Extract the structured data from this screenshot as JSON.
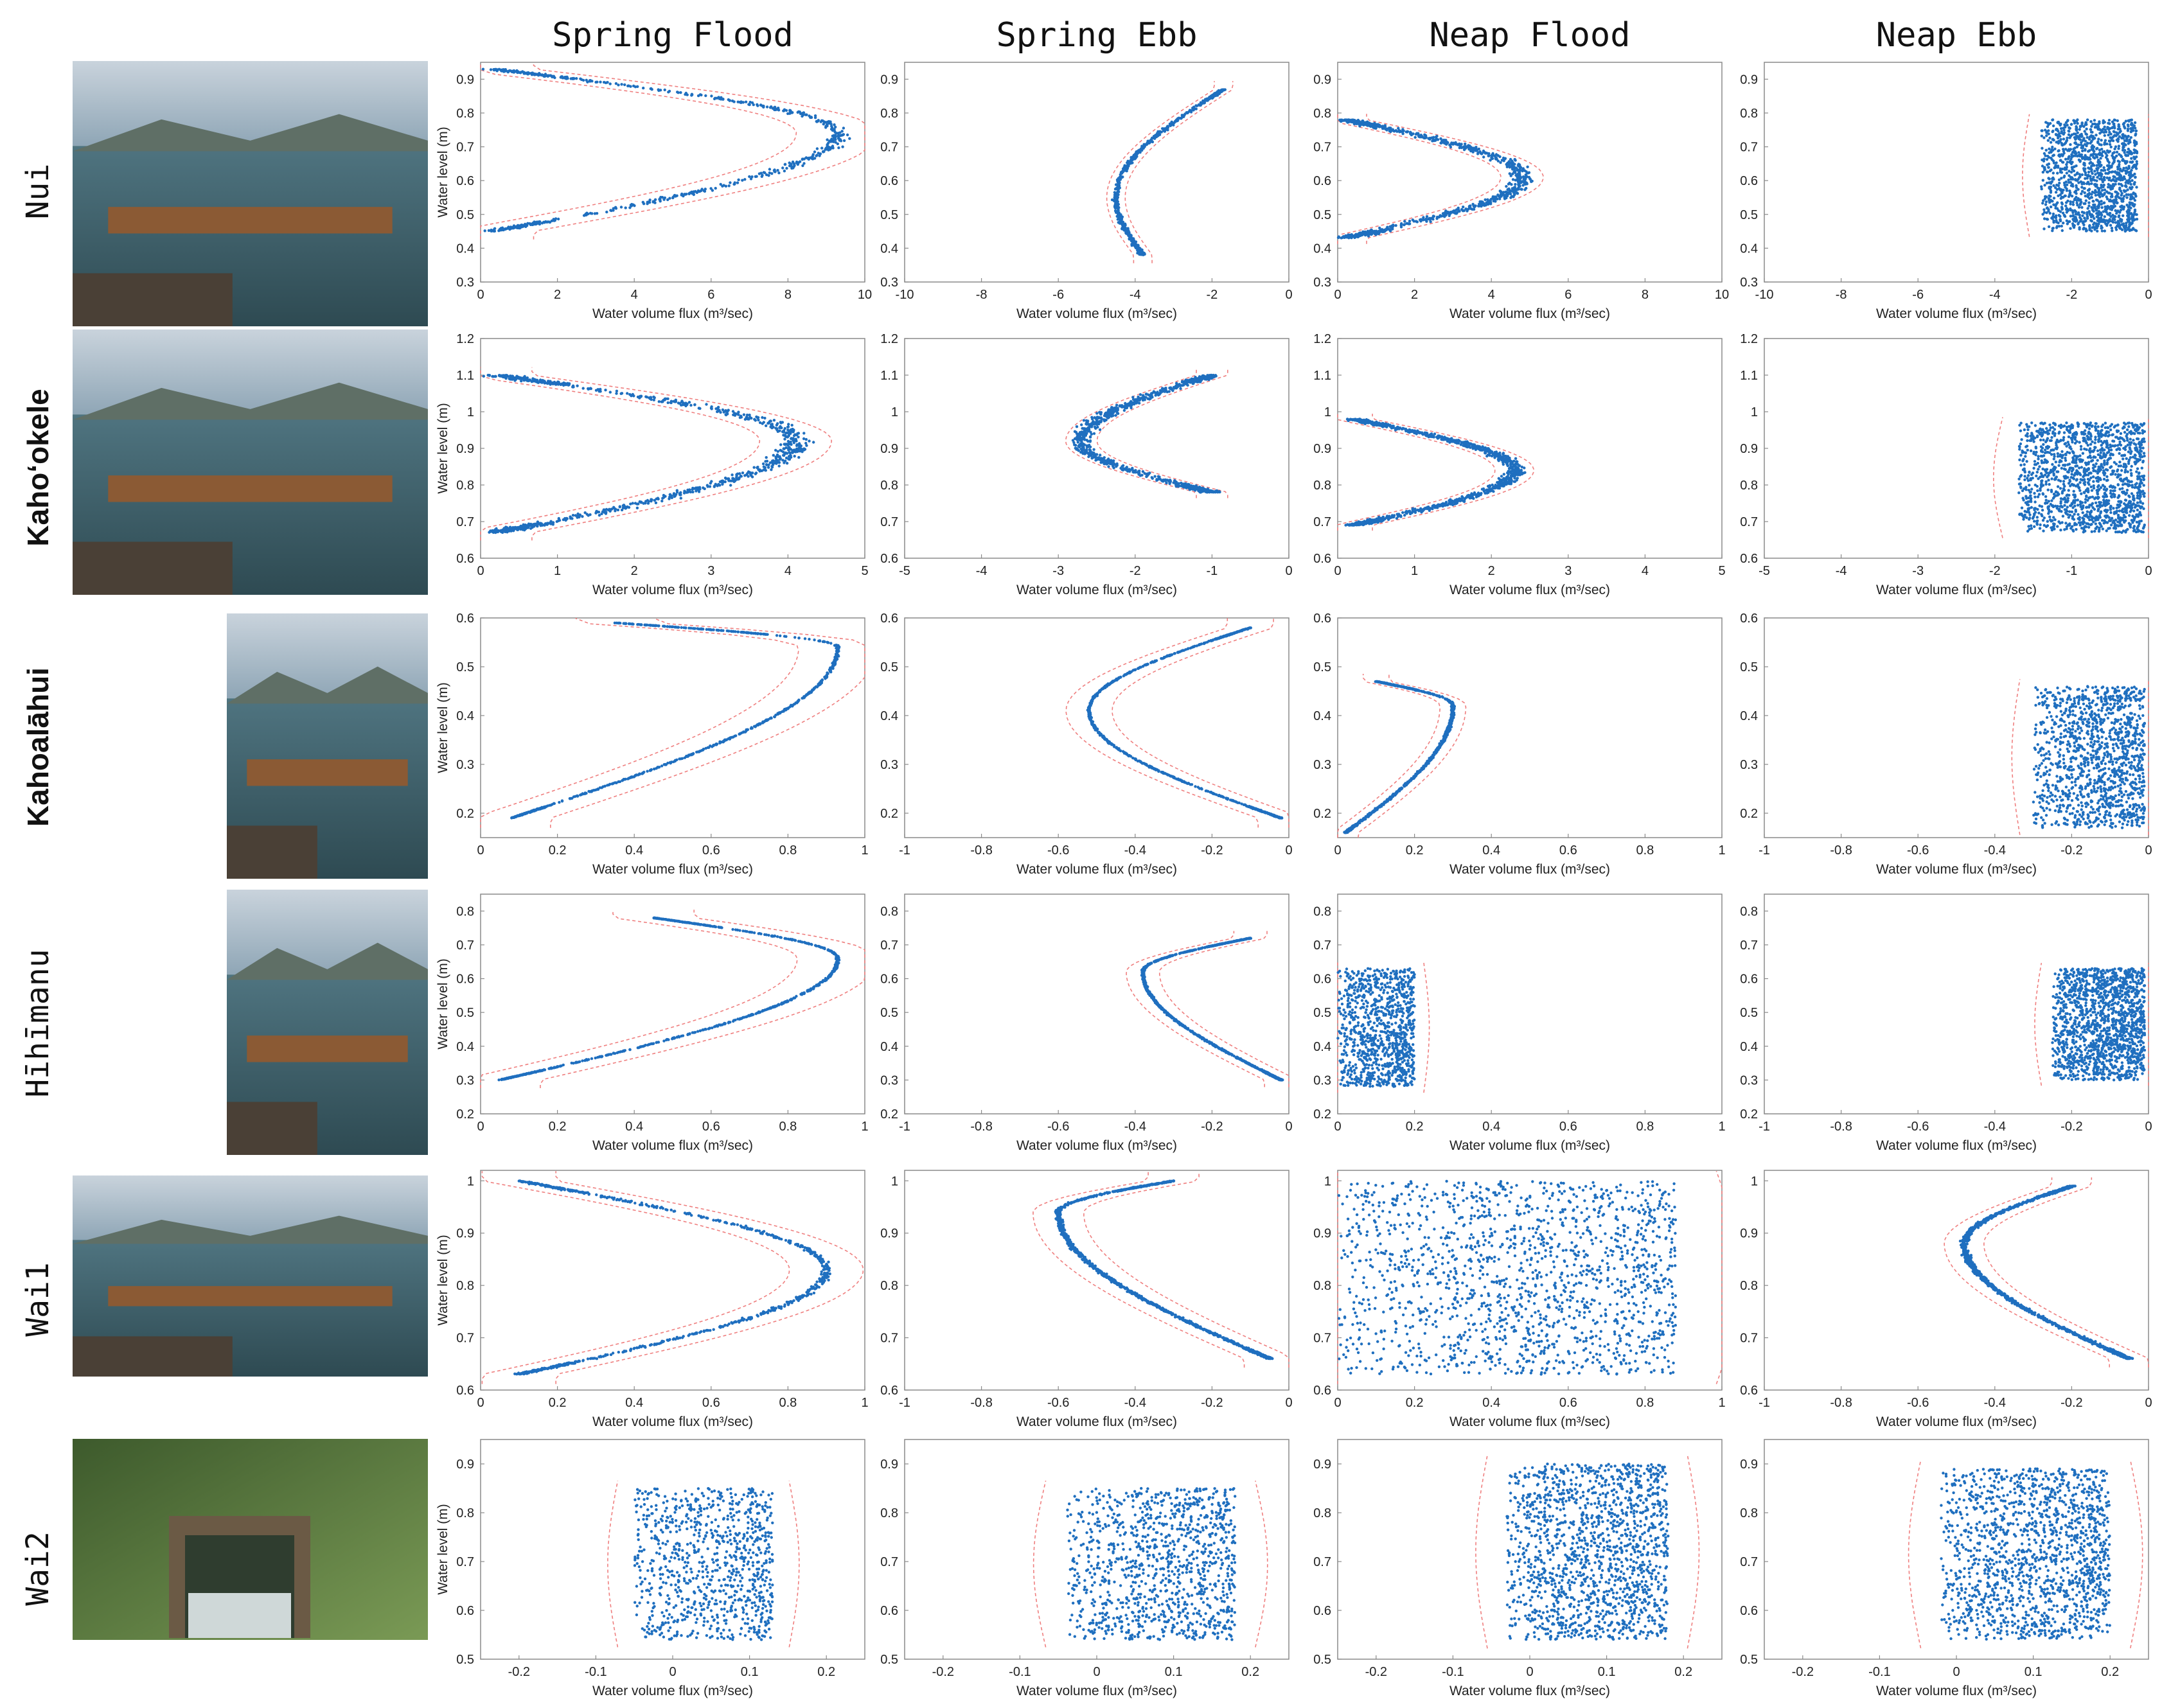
{
  "column_titles": [
    "Spring Flood",
    "Spring Ebb",
    "Neap Flood",
    "Neap Ebb"
  ],
  "sites": [
    {
      "label": "Nui",
      "style": "mono",
      "photo": "sea-wall-sluice-gate"
    },
    {
      "label": "Kaho‘okele",
      "style": "bold",
      "photo": "wooden-gate-in-bay"
    },
    {
      "label": "Kahoalāhui",
      "style": "bold",
      "photo": "channel-beside-hut"
    },
    {
      "label": "Hīhīmanu",
      "style": "mono",
      "photo": "stone-channel-with-grate"
    },
    {
      "label": "Wai1",
      "style": "mono",
      "photo": "wooden-slat-gate"
    },
    {
      "label": "Wai2",
      "style": "mono",
      "photo": "concrete-sluice-in-forest"
    }
  ],
  "colors": {
    "points": "#1f6fbf",
    "envelope": "#ef7f7f",
    "frame": "#8a8a8a"
  },
  "chart_data": [
    {
      "type": "scatter",
      "site": "Nui",
      "panel": "Spring Flood",
      "xlabel": "Water volume flux (m³/sec)",
      "ylabel": "Water level (m)",
      "xlim": [
        0,
        10
      ],
      "ylim": [
        0.3,
        0.95
      ],
      "xticks": [
        "0",
        "2",
        "4",
        "6",
        "8",
        "10"
      ],
      "yticks": [
        "0.3",
        "0.4",
        "0.5",
        "0.6",
        "0.7",
        "0.8",
        "0.9"
      ],
      "shape": "arc",
      "y_range": [
        0.45,
        0.93
      ],
      "x_at_edges": 0.3,
      "x_peak": 9.3,
      "y_peak": 0.74,
      "spread": 0.35,
      "n": 650
    },
    {
      "type": "scatter",
      "site": "Nui",
      "panel": "Spring Ebb",
      "xlabel": "Water volume flux (m³/sec)",
      "ylabel": "",
      "xlim": [
        -10,
        0
      ],
      "ylim": [
        0.3,
        0.95
      ],
      "xticks": [
        "-10",
        "-8",
        "-6",
        "-4",
        "-2",
        "0"
      ],
      "yticks": [
        "0.3",
        "0.4",
        "0.5",
        "0.6",
        "0.7",
        "0.8",
        "0.9"
      ],
      "shape": "arc",
      "y_range": [
        0.38,
        0.87
      ],
      "x_at_edges": -2.5,
      "x_top": -1.7,
      "x_bottom": -3.8,
      "x_peak": -4.5,
      "y_peak": 0.55,
      "spread": 0.1,
      "n": 700
    },
    {
      "type": "scatter",
      "site": "Nui",
      "panel": "Neap Flood",
      "xlabel": "Water volume flux (m³/sec)",
      "ylabel": "",
      "xlim": [
        0,
        10
      ],
      "ylim": [
        0.3,
        0.95
      ],
      "xticks": [
        "0",
        "2",
        "4",
        "6",
        "8",
        "10"
      ],
      "yticks": [
        "0.3",
        "0.4",
        "0.5",
        "0.6",
        "0.7",
        "0.8",
        "0.9"
      ],
      "shape": "arc",
      "y_range": [
        0.43,
        0.78
      ],
      "x_at_edges": 0.2,
      "x_peak": 4.8,
      "y_peak": 0.61,
      "spread": 0.4,
      "n": 900
    },
    {
      "type": "scatter",
      "site": "Nui",
      "panel": "Neap Ebb",
      "xlabel": "Water volume flux (m³/sec)",
      "ylabel": "",
      "xlim": [
        -10,
        0
      ],
      "ylim": [
        0.3,
        0.95
      ],
      "xticks": [
        "-10",
        "-8",
        "-6",
        "-4",
        "-2",
        "0"
      ],
      "yticks": [
        "0.3",
        "0.4",
        "0.5",
        "0.6",
        "0.7",
        "0.8",
        "0.9"
      ],
      "shape": "band",
      "y_range": [
        0.45,
        0.78
      ],
      "x_band": [
        -2.8,
        -0.3
      ],
      "n": 1400
    },
    {
      "type": "scatter",
      "site": "Kaho‘okele",
      "panel": "Spring Flood",
      "xlabel": "Water volume flux (m³/sec)",
      "ylabel": "Water level (m)",
      "xlim": [
        0,
        5
      ],
      "ylim": [
        0.6,
        1.2
      ],
      "xticks": [
        "0",
        "1",
        "2",
        "3",
        "4",
        "5"
      ],
      "yticks": [
        "0.6",
        "0.7",
        "0.8",
        "0.9",
        "1",
        "1.1",
        "1.2"
      ],
      "shape": "arc",
      "y_range": [
        0.67,
        1.1
      ],
      "x_at_edges": 0.2,
      "x_peak": 4.1,
      "y_peak": 0.92,
      "spread": 0.5,
      "n": 900
    },
    {
      "type": "scatter",
      "site": "Kaho‘okele",
      "panel": "Spring Ebb",
      "xlabel": "Water volume flux (m³/sec)",
      "ylabel": "",
      "xlim": [
        -5,
        0
      ],
      "ylim": [
        0.6,
        1.2
      ],
      "xticks": [
        "-5",
        "-4",
        "-3",
        "-2",
        "-1",
        "0"
      ],
      "yticks": [
        "0.6",
        "0.7",
        "0.8",
        "0.9",
        "1",
        "1.1",
        "1.2"
      ],
      "shape": "arc",
      "y_range": [
        0.78,
        1.1
      ],
      "x_at_edges": -1.0,
      "x_peak": -2.7,
      "y_peak": 0.92,
      "spread": 0.35,
      "n": 900
    },
    {
      "type": "scatter",
      "site": "Kaho‘okele",
      "panel": "Neap Flood",
      "xlabel": "Water volume flux (m³/sec)",
      "ylabel": "",
      "xlim": [
        0,
        5
      ],
      "ylim": [
        0.6,
        1.2
      ],
      "xticks": [
        "0",
        "1",
        "2",
        "3",
        "4",
        "5"
      ],
      "yticks": [
        "0.6",
        "0.7",
        "0.8",
        "0.9",
        "1",
        "1.1",
        "1.2"
      ],
      "shape": "arc",
      "y_range": [
        0.69,
        0.98
      ],
      "x_at_edges": 0.2,
      "x_peak": 2.3,
      "y_peak": 0.84,
      "spread": 0.35,
      "n": 1100
    },
    {
      "type": "scatter",
      "site": "Kaho‘okele",
      "panel": "Neap Ebb",
      "xlabel": "Water volume flux (m³/sec)",
      "ylabel": "",
      "xlim": [
        -5,
        0
      ],
      "ylim": [
        0.6,
        1.2
      ],
      "xticks": [
        "-5",
        "-4",
        "-3",
        "-2",
        "-1",
        "0"
      ],
      "yticks": [
        "0.6",
        "0.7",
        "0.8",
        "0.9",
        "1",
        "1.1",
        "1.2"
      ],
      "shape": "band",
      "y_range": [
        0.67,
        0.97
      ],
      "x_band": [
        -1.7,
        -0.05
      ],
      "n": 1500
    },
    {
      "type": "scatter",
      "site": "Kahoalāhui",
      "panel": "Spring Flood",
      "xlabel": "Water volume flux (m³/sec)",
      "ylabel": "Water level (m)",
      "xlim": [
        0,
        1
      ],
      "ylim": [
        0.15,
        0.6
      ],
      "xticks": [
        "0",
        "0.2",
        "0.4",
        "0.6",
        "0.8",
        "1"
      ],
      "yticks": [
        "0.2",
        "0.3",
        "0.4",
        "0.5",
        "0.6"
      ],
      "shape": "arc",
      "y_range": [
        0.19,
        0.59
      ],
      "x_at_edges": 0.08,
      "x_top": 0.35,
      "x_peak": 0.93,
      "y_peak": 0.54,
      "spread": 0.06,
      "n": 750
    },
    {
      "type": "scatter",
      "site": "Kahoalāhui",
      "panel": "Spring Ebb",
      "xlabel": "Water volume flux (m³/sec)",
      "ylabel": "",
      "xlim": [
        -1,
        0
      ],
      "ylim": [
        0.15,
        0.6
      ],
      "xticks": [
        "-1",
        "-0.8",
        "-0.6",
        "-0.4",
        "-0.2",
        "0"
      ],
      "yticks": [
        "0.2",
        "0.3",
        "0.4",
        "0.5",
        "0.6"
      ],
      "shape": "arc",
      "y_range": [
        0.19,
        0.58
      ],
      "x_at_edges": -0.02,
      "x_top": -0.1,
      "x_peak": -0.52,
      "y_peak": 0.41,
      "spread": 0.05,
      "n": 850
    },
    {
      "type": "scatter",
      "site": "Kahoalāhui",
      "panel": "Neap Flood",
      "xlabel": "Water volume flux (m³/sec)",
      "ylabel": "",
      "xlim": [
        0,
        1
      ],
      "ylim": [
        0.15,
        0.6
      ],
      "xticks": [
        "0",
        "0.2",
        "0.4",
        "0.6",
        "0.8",
        "1"
      ],
      "yticks": [
        "0.2",
        "0.3",
        "0.4",
        "0.5",
        "0.6"
      ],
      "shape": "arc",
      "y_range": [
        0.16,
        0.47
      ],
      "x_at_edges": 0.02,
      "x_top": 0.1,
      "x_peak": 0.3,
      "y_peak": 0.42,
      "spread": 0.06,
      "n": 1000
    },
    {
      "type": "scatter",
      "site": "Kahoalāhui",
      "panel": "Neap Ebb",
      "xlabel": "Water volume flux (m³/sec)",
      "ylabel": "",
      "xlim": [
        -1,
        0
      ],
      "ylim": [
        0.15,
        0.6
      ],
      "xticks": [
        "-1",
        "-0.8",
        "-0.6",
        "-0.4",
        "-0.2",
        "0"
      ],
      "yticks": [
        "0.2",
        "0.3",
        "0.4",
        "0.5",
        "0.6"
      ],
      "shape": "band",
      "y_range": [
        0.17,
        0.46
      ],
      "x_band": [
        -0.3,
        -0.01
      ],
      "n": 1300
    },
    {
      "type": "scatter",
      "site": "Hīhīmanu",
      "panel": "Spring Flood",
      "xlabel": "Water volume flux (m³/sec)",
      "ylabel": "Water level (m)",
      "xlim": [
        0,
        1
      ],
      "ylim": [
        0.2,
        0.85
      ],
      "xticks": [
        "0",
        "0.2",
        "0.4",
        "0.6",
        "0.8",
        "1"
      ],
      "yticks": [
        "0.2",
        "0.3",
        "0.4",
        "0.5",
        "0.6",
        "0.7",
        "0.8"
      ],
      "shape": "arc",
      "y_range": [
        0.3,
        0.78
      ],
      "x_at_edges": 0.05,
      "x_top": 0.45,
      "x_peak": 0.93,
      "y_peak": 0.66,
      "spread": 0.06,
      "n": 800
    },
    {
      "type": "scatter",
      "site": "Hīhīmanu",
      "panel": "Spring Ebb",
      "xlabel": "Water volume flux (m³/sec)",
      "ylabel": "",
      "xlim": [
        -1,
        0
      ],
      "ylim": [
        0.2,
        0.85
      ],
      "xticks": [
        "-1",
        "-0.8",
        "-0.6",
        "-0.4",
        "-0.2",
        "0"
      ],
      "yticks": [
        "0.2",
        "0.3",
        "0.4",
        "0.5",
        "0.6",
        "0.7",
        "0.8"
      ],
      "shape": "arc",
      "y_range": [
        0.3,
        0.72
      ],
      "x_at_edges": -0.02,
      "x_top": -0.1,
      "x_peak": -0.38,
      "y_peak": 0.62,
      "spread": 0.05,
      "n": 1200
    },
    {
      "type": "scatter",
      "site": "Hīhīmanu",
      "panel": "Neap Flood",
      "xlabel": "Water volume flux (m³/sec)",
      "ylabel": "",
      "xlim": [
        0,
        1
      ],
      "ylim": [
        0.2,
        0.85
      ],
      "xticks": [
        "0",
        "0.2",
        "0.4",
        "0.6",
        "0.8",
        "1"
      ],
      "yticks": [
        "0.2",
        "0.3",
        "0.4",
        "0.5",
        "0.6",
        "0.7",
        "0.8"
      ],
      "shape": "band",
      "y_range": [
        0.28,
        0.63
      ],
      "x_band": [
        0.0,
        0.2
      ],
      "n": 1000
    },
    {
      "type": "scatter",
      "site": "Hīhīmanu",
      "panel": "Neap Ebb",
      "xlabel": "Water volume flux (m³/sec)",
      "ylabel": "",
      "xlim": [
        -1,
        0
      ],
      "ylim": [
        0.2,
        0.85
      ],
      "xticks": [
        "-1",
        "-0.8",
        "-0.6",
        "-0.4",
        "-0.2",
        "0"
      ],
      "yticks": [
        "0.2",
        "0.3",
        "0.4",
        "0.5",
        "0.6",
        "0.7",
        "0.8"
      ],
      "shape": "band",
      "y_range": [
        0.3,
        0.63
      ],
      "x_band": [
        -0.25,
        -0.01
      ],
      "n": 1500
    },
    {
      "type": "scatter",
      "site": "Wai1",
      "panel": "Spring Flood",
      "xlabel": "Water volume flux (m³/sec)",
      "ylabel": "Water level (m)",
      "xlim": [
        0,
        1
      ],
      "ylim": [
        0.6,
        1.02
      ],
      "xticks": [
        "0",
        "0.2",
        "0.4",
        "0.6",
        "0.8",
        "1"
      ],
      "yticks": [
        "0.6",
        "0.7",
        "0.8",
        "0.9",
        "1"
      ],
      "shape": "arc",
      "y_range": [
        0.63,
        1.0
      ],
      "x_at_edges": 0.1,
      "x_peak": 0.9,
      "y_peak": 0.83,
      "spread": 0.18,
      "n": 750
    },
    {
      "type": "scatter",
      "site": "Wai1",
      "panel": "Spring Ebb",
      "xlabel": "Water volume flux (m³/sec)",
      "ylabel": "",
      "xlim": [
        -1,
        0
      ],
      "ylim": [
        0.6,
        1.02
      ],
      "xticks": [
        "-1",
        "-0.8",
        "-0.6",
        "-0.4",
        "-0.2",
        "0"
      ],
      "yticks": [
        "0.6",
        "0.7",
        "0.8",
        "0.9",
        "1"
      ],
      "shape": "arc",
      "y_range": [
        0.66,
        1.0
      ],
      "x_at_edges": -0.05,
      "x_top": -0.3,
      "x_peak": -0.6,
      "y_peak": 0.94,
      "spread": 0.1,
      "n": 1300
    },
    {
      "type": "scatter",
      "site": "Wai1",
      "panel": "Neap Flood",
      "xlabel": "Water volume flux (m³/sec)",
      "ylabel": "",
      "xlim": [
        0,
        1
      ],
      "ylim": [
        0.6,
        1.02
      ],
      "xticks": [
        "0",
        "0.2",
        "0.4",
        "0.6",
        "0.8",
        "1"
      ],
      "yticks": [
        "0.6",
        "0.7",
        "0.8",
        "0.9",
        "1"
      ],
      "shape": "band",
      "y_range": [
        0.63,
        1.0
      ],
      "x_band": [
        0.0,
        0.88
      ],
      "n": 1600
    },
    {
      "type": "scatter",
      "site": "Wai1",
      "panel": "Neap Ebb",
      "xlabel": "Water volume flux (m³/sec)",
      "ylabel": "",
      "xlim": [
        -1,
        0
      ],
      "ylim": [
        0.6,
        1.02
      ],
      "xticks": [
        "-1",
        "-0.8",
        "-0.6",
        "-0.4",
        "-0.2",
        "0"
      ],
      "yticks": [
        "0.6",
        "0.7",
        "0.8",
        "0.9",
        "1"
      ],
      "shape": "arc",
      "y_range": [
        0.66,
        0.99
      ],
      "x_at_edges": -0.05,
      "x_top": -0.2,
      "x_peak": -0.48,
      "y_peak": 0.88,
      "spread": 0.12,
      "n": 1500
    },
    {
      "type": "scatter",
      "site": "Wai2",
      "panel": "Spring Flood",
      "xlabel": "Water volume flux (m³/sec)",
      "ylabel": "Water level (m)",
      "xlim": [
        -0.25,
        0.25
      ],
      "ylim": [
        0.5,
        0.95
      ],
      "xticks": [
        "-0.2",
        "-0.1",
        "0",
        "0.1",
        "0.2"
      ],
      "yticks": [
        "0.5",
        "0.6",
        "0.7",
        "0.8",
        "0.9"
      ],
      "shape": "band",
      "y_range": [
        0.54,
        0.85
      ],
      "x_band": [
        -0.05,
        0.13
      ],
      "n": 900
    },
    {
      "type": "scatter",
      "site": "Wai2",
      "panel": "Spring Ebb",
      "xlabel": "Water volume flux (m³/sec)",
      "ylabel": "",
      "xlim": [
        -0.25,
        0.25
      ],
      "ylim": [
        0.5,
        0.95
      ],
      "xticks": [
        "-0.2",
        "-0.1",
        "0",
        "0.1",
        "0.2"
      ],
      "yticks": [
        "0.5",
        "0.6",
        "0.7",
        "0.8",
        "0.9"
      ],
      "shape": "band",
      "y_range": [
        0.54,
        0.85
      ],
      "x_band": [
        -0.04,
        0.18
      ],
      "n": 1100
    },
    {
      "type": "scatter",
      "site": "Wai2",
      "panel": "Neap Flood",
      "xlabel": "Water volume flux (m³/sec)",
      "ylabel": "",
      "xlim": [
        -0.25,
        0.25
      ],
      "ylim": [
        0.5,
        0.95
      ],
      "xticks": [
        "-0.2",
        "-0.1",
        "0",
        "0.1",
        "0.2"
      ],
      "yticks": [
        "0.5",
        "0.6",
        "0.7",
        "0.8",
        "0.9"
      ],
      "shape": "band",
      "y_range": [
        0.54,
        0.9
      ],
      "x_band": [
        -0.03,
        0.18
      ],
      "n": 1500
    },
    {
      "type": "scatter",
      "site": "Wai2",
      "panel": "Neap Ebb",
      "xlabel": "Water volume flux (m³/sec)",
      "ylabel": "",
      "xlim": [
        -0.25,
        0.25
      ],
      "ylim": [
        0.5,
        0.95
      ],
      "xticks": [
        "-0.2",
        "-0.1",
        "0",
        "0.1",
        "0.2"
      ],
      "yticks": [
        "0.5",
        "0.6",
        "0.7",
        "0.8",
        "0.9"
      ],
      "shape": "band",
      "y_range": [
        0.54,
        0.89
      ],
      "x_band": [
        -0.02,
        0.2
      ],
      "n": 1500
    }
  ]
}
